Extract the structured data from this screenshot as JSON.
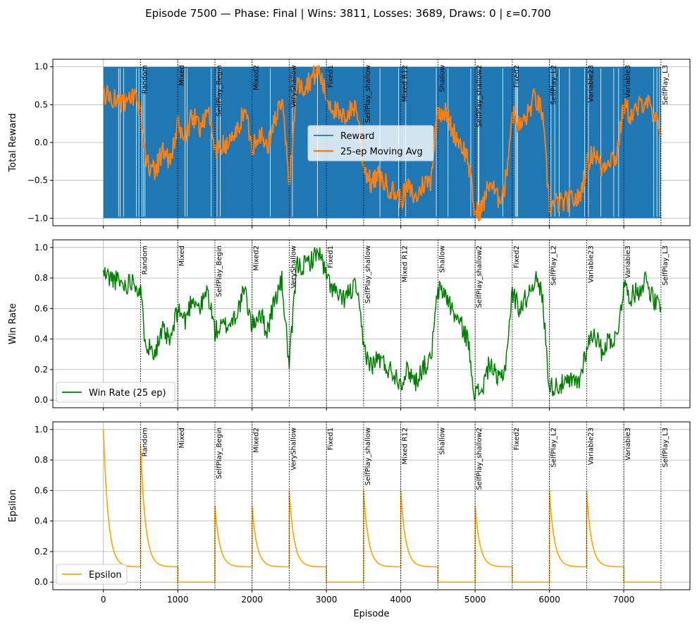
{
  "title": "Episode 7500 — Phase: Final | Wins: 3811, Losses: 3689, Draws: 0 | ε=0.700",
  "x_axis": {
    "label": "Episode",
    "ticks": [
      0,
      1000,
      2000,
      3000,
      4000,
      5000,
      6000,
      7000
    ],
    "tick_labels": [
      "0",
      "1000",
      "2000",
      "3000",
      "4000",
      "5000",
      "6000",
      "7000"
    ],
    "lim": [
      -680,
      7890
    ]
  },
  "phase_markers": [
    {
      "x": 500,
      "label": "Random"
    },
    {
      "x": 1000,
      "label": "Mixed"
    },
    {
      "x": 1500,
      "label": "SelfPlay_Begin"
    },
    {
      "x": 2000,
      "label": "Mixed2"
    },
    {
      "x": 2500,
      "label": "VeryShallow"
    },
    {
      "x": 3000,
      "label": "Fixed1"
    },
    {
      "x": 3500,
      "label": "SelfPlay_shallow"
    },
    {
      "x": 4000,
      "label": "Mixed R12"
    },
    {
      "x": 4500,
      "label": "Shallow"
    },
    {
      "x": 5000,
      "label": "SelfPlay_shallow2"
    },
    {
      "x": 5500,
      "label": "Fixed2"
    },
    {
      "x": 6000,
      "label": "SelfPlay_L2"
    },
    {
      "x": 6500,
      "label": "Variable23"
    },
    {
      "x": 7000,
      "label": "Variable3"
    },
    {
      "x": 7500,
      "label": "SelfPlay_L3"
    }
  ],
  "colors": {
    "reward": "#1f77b4",
    "moving_avg": "#ff7f0e",
    "win_rate": "#008000",
    "epsilon": "#ffa500",
    "grid": "#b0b0b0",
    "marker": "#000000"
  },
  "chart_data": [
    {
      "type": "line",
      "name": "reward-panel",
      "ylabel": "Total Reward",
      "ylim": [
        -1.1,
        1.1
      ],
      "yticks": [
        -1.0,
        -0.5,
        0.0,
        0.5,
        1.0
      ],
      "ytick_labels": [
        "−1.0",
        "−0.5",
        "0.0",
        "0.5",
        "1.0"
      ],
      "grid": true,
      "legend_position": "center",
      "series": [
        {
          "name": "Reward",
          "kind": "dense_binary",
          "values": [
            -1,
            1
          ],
          "x_range": [
            0,
            7500
          ]
        },
        {
          "name": "25-ep Moving Avg",
          "x": [
            0,
            100,
            200,
            300,
            400,
            500,
            550,
            600,
            700,
            800,
            900,
            1000,
            1100,
            1200,
            1300,
            1400,
            1500,
            1600,
            1700,
            1800,
            1900,
            2000,
            2100,
            2200,
            2300,
            2400,
            2500,
            2600,
            2700,
            2800,
            2900,
            3000,
            3100,
            3200,
            3300,
            3400,
            3500,
            3600,
            3700,
            3800,
            3900,
            4000,
            4100,
            4200,
            4300,
            4400,
            4500,
            4600,
            4700,
            4800,
            4900,
            5000,
            5100,
            5200,
            5300,
            5400,
            5500,
            5600,
            5700,
            5800,
            5900,
            6000,
            6100,
            6200,
            6300,
            6400,
            6500,
            6600,
            6700,
            6800,
            6900,
            7000,
            7100,
            7200,
            7300,
            7400,
            7500
          ],
          "values": [
            0.65,
            0.6,
            0.55,
            0.5,
            0.6,
            0.4,
            -0.1,
            -0.3,
            -0.35,
            -0.1,
            -0.25,
            0.2,
            0.05,
            0.35,
            0.2,
            0.45,
            -0.1,
            -0.05,
            0.0,
            0.15,
            0.45,
            -0.05,
            0.15,
            -0.1,
            0.3,
            0.55,
            -0.55,
            0.75,
            0.75,
            0.85,
            0.95,
            0.6,
            0.45,
            0.3,
            0.4,
            0.5,
            -0.3,
            -0.55,
            -0.45,
            -0.55,
            -0.65,
            -0.75,
            -0.6,
            -0.75,
            -0.55,
            -0.5,
            0.45,
            0.4,
            0.15,
            0.0,
            -0.2,
            -0.95,
            -0.85,
            -0.5,
            -0.75,
            -0.6,
            0.4,
            0.2,
            0.35,
            0.6,
            0.4,
            -0.85,
            -0.8,
            -0.8,
            -0.75,
            -0.75,
            -0.3,
            -0.1,
            -0.35,
            -0.2,
            -0.2,
            0.5,
            0.35,
            0.45,
            0.6,
            0.3,
            0.2
          ]
        }
      ]
    },
    {
      "type": "line",
      "name": "win-rate-panel",
      "ylabel": "Win Rate",
      "ylim": [
        -0.05,
        1.05
      ],
      "yticks": [
        0.0,
        0.2,
        0.4,
        0.6,
        0.8,
        1.0
      ],
      "ytick_labels": [
        "0.0",
        "0.2",
        "0.4",
        "0.6",
        "0.8",
        "1.0"
      ],
      "grid": true,
      "legend_position": "lower left",
      "series": [
        {
          "name": "Win Rate (25 ep)",
          "x": [
            0,
            100,
            200,
            300,
            400,
            500,
            550,
            600,
            700,
            800,
            900,
            1000,
            1100,
            1200,
            1300,
            1400,
            1500,
            1600,
            1700,
            1800,
            1900,
            2000,
            2100,
            2200,
            2300,
            2400,
            2500,
            2600,
            2700,
            2800,
            2900,
            3000,
            3100,
            3200,
            3300,
            3400,
            3500,
            3600,
            3700,
            3800,
            3900,
            4000,
            4100,
            4200,
            4300,
            4400,
            4500,
            4600,
            4700,
            4800,
            4900,
            5000,
            5100,
            5200,
            5300,
            5400,
            5500,
            5600,
            5700,
            5800,
            5900,
            6000,
            6100,
            6200,
            6300,
            6400,
            6500,
            6600,
            6700,
            6800,
            6900,
            7000,
            7100,
            7200,
            7300,
            7400,
            7500
          ],
          "values": [
            0.83,
            0.8,
            0.78,
            0.75,
            0.8,
            0.7,
            0.45,
            0.35,
            0.33,
            0.45,
            0.38,
            0.6,
            0.52,
            0.68,
            0.6,
            0.72,
            0.45,
            0.48,
            0.5,
            0.58,
            0.72,
            0.48,
            0.58,
            0.45,
            0.65,
            0.78,
            0.22,
            0.88,
            0.88,
            0.92,
            0.98,
            0.8,
            0.72,
            0.65,
            0.7,
            0.75,
            0.35,
            0.22,
            0.28,
            0.22,
            0.18,
            0.12,
            0.2,
            0.12,
            0.22,
            0.25,
            0.72,
            0.7,
            0.58,
            0.5,
            0.4,
            0.03,
            0.08,
            0.25,
            0.12,
            0.2,
            0.7,
            0.6,
            0.68,
            0.8,
            0.7,
            0.08,
            0.1,
            0.1,
            0.12,
            0.12,
            0.35,
            0.45,
            0.32,
            0.4,
            0.4,
            0.75,
            0.68,
            0.72,
            0.8,
            0.65,
            0.6
          ]
        }
      ]
    },
    {
      "type": "line",
      "name": "epsilon-panel",
      "ylabel": "Epsilon",
      "xlabel": "Episode",
      "ylim": [
        -0.05,
        1.05
      ],
      "yticks": [
        0.0,
        0.2,
        0.4,
        0.6,
        0.8,
        1.0
      ],
      "ytick_labels": [
        "0.0",
        "0.2",
        "0.4",
        "0.6",
        "0.8",
        "1.0"
      ],
      "grid": true,
      "legend_position": "lower left",
      "series": [
        {
          "name": "Epsilon",
          "segments": [
            {
              "start": 0,
              "end": 500,
              "peak": 1.0,
              "floor": 0.1
            },
            {
              "start": 500,
              "end": 1000,
              "peak": 0.9,
              "floor": 0.1
            },
            {
              "start": 1000,
              "end": 1500,
              "peak": 0.0,
              "floor": 0.0
            },
            {
              "start": 1500,
              "end": 2000,
              "peak": 0.5,
              "floor": 0.1
            },
            {
              "start": 2000,
              "end": 2500,
              "peak": 0.5,
              "floor": 0.1
            },
            {
              "start": 2500,
              "end": 3000,
              "peak": 0.6,
              "floor": 0.1
            },
            {
              "start": 3000,
              "end": 3500,
              "peak": 0.0,
              "floor": 0.0
            },
            {
              "start": 3500,
              "end": 4000,
              "peak": 0.6,
              "floor": 0.1
            },
            {
              "start": 4000,
              "end": 4500,
              "peak": 0.6,
              "floor": 0.1
            },
            {
              "start": 4500,
              "end": 5000,
              "peak": 0.0,
              "floor": 0.0
            },
            {
              "start": 5000,
              "end": 5500,
              "peak": 0.5,
              "floor": 0.1
            },
            {
              "start": 5500,
              "end": 6000,
              "peak": 0.0,
              "floor": 0.0
            },
            {
              "start": 6000,
              "end": 6500,
              "peak": 0.6,
              "floor": 0.1
            },
            {
              "start": 6500,
              "end": 7000,
              "peak": 0.6,
              "floor": 0.1
            },
            {
              "start": 7000,
              "end": 7500,
              "peak": 0.0,
              "floor": 0.0
            }
          ]
        }
      ]
    }
  ]
}
